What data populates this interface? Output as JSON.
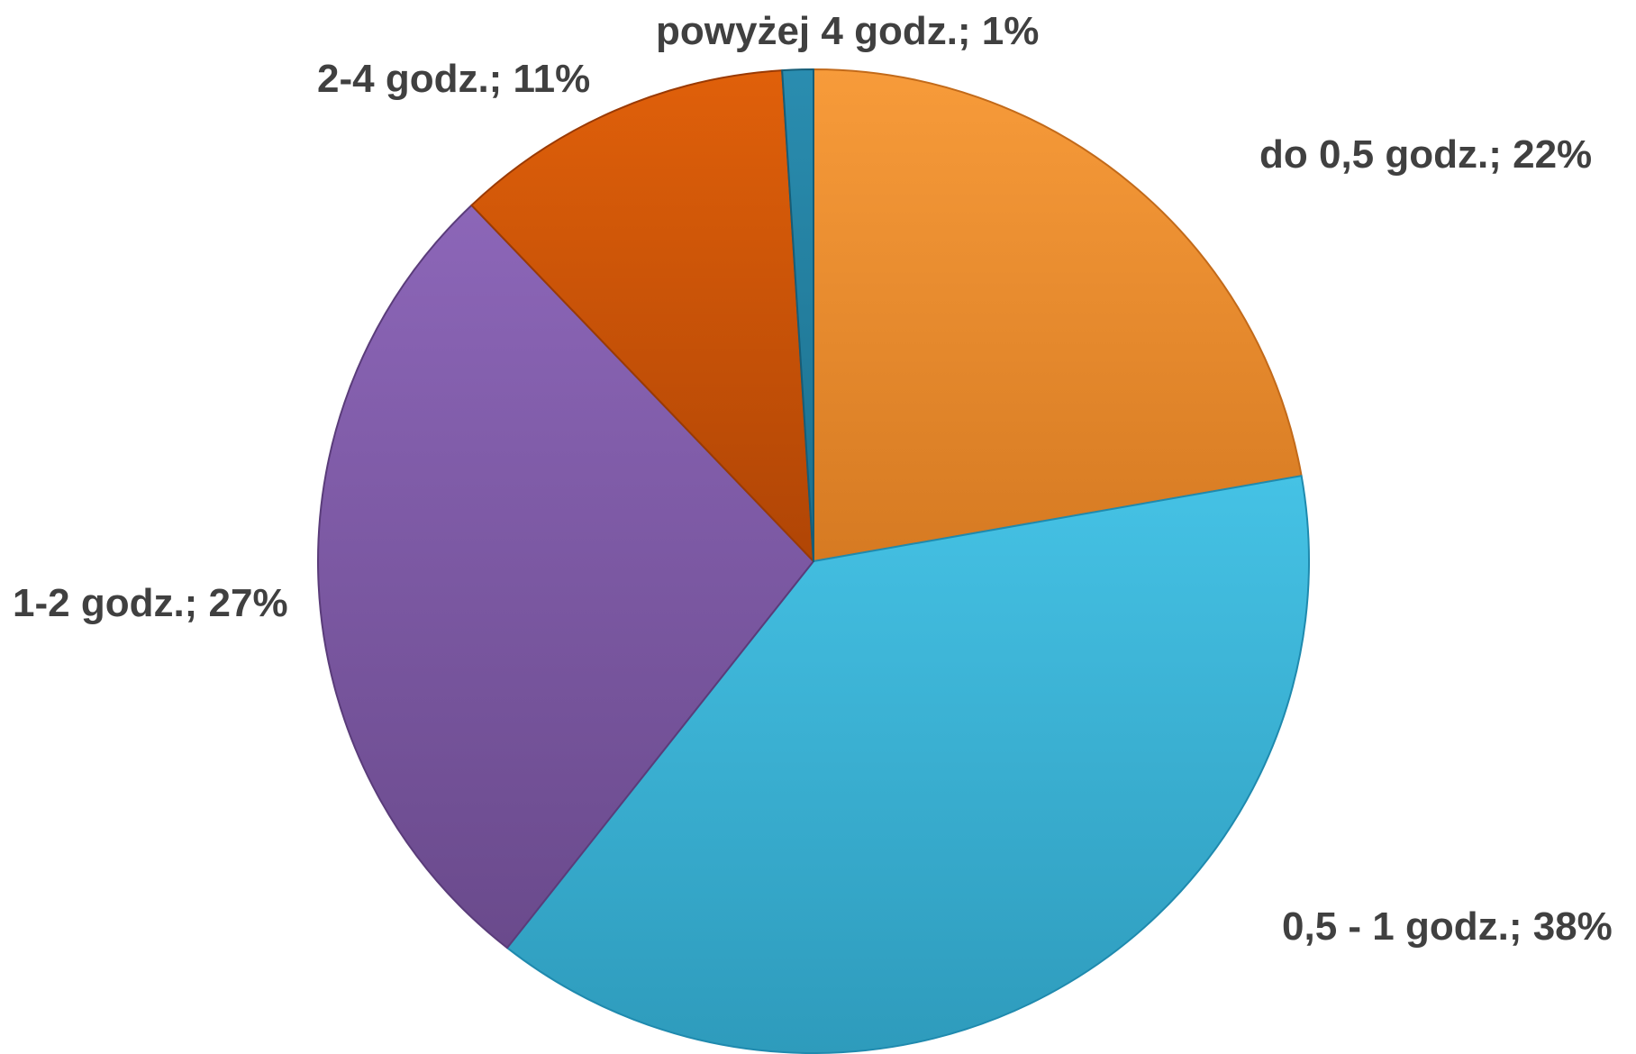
{
  "chart_data": {
    "type": "pie",
    "title": "",
    "legend": "none",
    "slices": [
      {
        "label": "do 0,5 godz.",
        "value": 22,
        "display": "do 0,5 godz.; 22%",
        "color": "#F79B3A",
        "dark": "#D67A22",
        "edge": "#C26A1A"
      },
      {
        "label": "0,5 - 1 godz.",
        "value": 38,
        "display": "0,5 - 1 godz.; 38%",
        "color": "#45C2E5",
        "dark": "#2E9BBC",
        "edge": "#1F8AAE"
      },
      {
        "label": "1-2 godz.",
        "value": 27,
        "display": "1-2 godz.; 27%",
        "color": "#8C66B8",
        "dark": "#6A4A8C",
        "edge": "#5A3C7A"
      },
      {
        "label": "2-4 godz.",
        "value": 11,
        "display": "2-4 godz.; 11%",
        "color": "#E0600A",
        "dark": "#B04505",
        "edge": "#9A3A04"
      },
      {
        "label": "powyżej 4 godz.",
        "value": 1,
        "display": "powyżej 4 godz.; 1%",
        "color": "#2A8DB0",
        "dark": "#1C6F8C",
        "edge": "#165D77"
      }
    ]
  }
}
